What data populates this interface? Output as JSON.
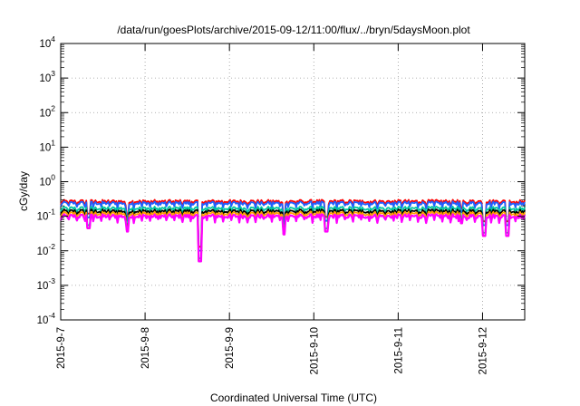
{
  "chart_data": {
    "type": "line",
    "title": "/data/run/goesPlots/archive/2015-09-12/11:00/flux/../bryn/5daysMoon.plot",
    "xlabel": "Coordinated Universal Time (UTC)",
    "ylabel": "cGy/day",
    "yscale": "log",
    "ylim": [
      0.0001,
      10000
    ],
    "yticks": [
      {
        "base": "10",
        "exp": "-4",
        "value": 0.0001
      },
      {
        "base": "10",
        "exp": "-3",
        "value": 0.001
      },
      {
        "base": "10",
        "exp": "-2",
        "value": 0.01
      },
      {
        "base": "10",
        "exp": "-1",
        "value": 0.1
      },
      {
        "base": "10",
        "exp": "0",
        "value": 1
      },
      {
        "base": "10",
        "exp": "1",
        "value": 10
      },
      {
        "base": "10",
        "exp": "2",
        "value": 100
      },
      {
        "base": "10",
        "exp": "3",
        "value": 1000
      },
      {
        "base": "10",
        "exp": "4",
        "value": 10000
      }
    ],
    "xlim": [
      "2015-09-07 00:00",
      "2015-09-12 12:00"
    ],
    "xticks": [
      "2015-9-7",
      "2015-9-8",
      "2015-9-9",
      "2015-9-10",
      "2015-9-11",
      "2015-9-12"
    ],
    "grid": true,
    "legend": "none",
    "series": [
      {
        "color": "#ff0000",
        "baseline": 0.27
      },
      {
        "color": "#1f5fff",
        "baseline": 0.24
      },
      {
        "color": "#00c8a0",
        "baseline": 0.17
      },
      {
        "color": "#000000",
        "baseline": 0.14
      },
      {
        "color": "#ffa000",
        "baseline": 0.12
      },
      {
        "color": "#ff00ff",
        "baseline": 0.1
      }
    ],
    "dips": [
      {
        "t": "2015-09-07 08:00",
        "min": 0.05
      },
      {
        "t": "2015-09-07 19:00",
        "min": 0.04
      },
      {
        "t": "2015-09-08 15:30",
        "min": 0.0055
      },
      {
        "t": "2015-09-09 15:30",
        "min": 0.033
      },
      {
        "t": "2015-09-10 03:30",
        "min": 0.04
      },
      {
        "t": "2015-09-11 18:00",
        "min": 0.07
      },
      {
        "t": "2015-09-12 00:30",
        "min": 0.03
      },
      {
        "t": "2015-09-12 07:00",
        "min": 0.03
      }
    ]
  }
}
